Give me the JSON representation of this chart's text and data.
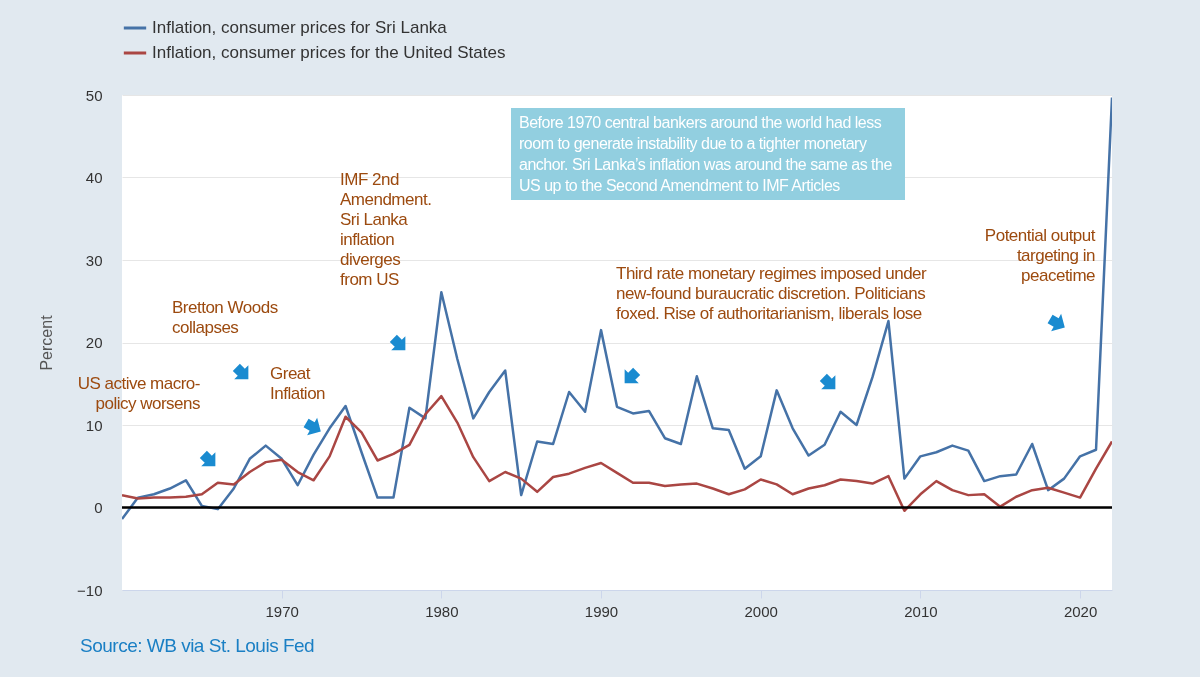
{
  "chart_data": {
    "type": "line",
    "ylabel": "Percent",
    "x": [
      1960,
      1961,
      1962,
      1963,
      1964,
      1965,
      1966,
      1967,
      1968,
      1969,
      1970,
      1971,
      1972,
      1973,
      1974,
      1975,
      1976,
      1977,
      1978,
      1979,
      1980,
      1981,
      1982,
      1983,
      1984,
      1985,
      1986,
      1987,
      1988,
      1989,
      1990,
      1991,
      1992,
      1993,
      1994,
      1995,
      1996,
      1997,
      1998,
      1999,
      2000,
      2001,
      2002,
      2003,
      2004,
      2005,
      2006,
      2007,
      2008,
      2009,
      2010,
      2011,
      2012,
      2013,
      2014,
      2015,
      2016,
      2017,
      2018,
      2019,
      2020,
      2021,
      2022
    ],
    "series": [
      {
        "name": "Inflation, consumer prices for Sri Lanka",
        "color": "#4572a7",
        "values": [
          -1.4,
          1.2,
          1.6,
          2.3,
          3.3,
          0.2,
          -0.2,
          2.3,
          5.9,
          7.5,
          5.9,
          2.7,
          6.4,
          9.6,
          12.3,
          6.7,
          1.2,
          1.2,
          12.1,
          10.8,
          26.1,
          18.0,
          10.8,
          14.0,
          16.6,
          1.5,
          8.0,
          7.7,
          14.0,
          11.6,
          21.5,
          12.2,
          11.4,
          11.7,
          8.4,
          7.7,
          15.9,
          9.6,
          9.4,
          4.7,
          6.2,
          14.2,
          9.6,
          6.3,
          7.6,
          11.6,
          10.0,
          15.8,
          22.6,
          3.5,
          6.2,
          6.7,
          7.5,
          6.9,
          3.2,
          3.8,
          4.0,
          7.7,
          2.1,
          3.5,
          6.2,
          7.0,
          49.7
        ]
      },
      {
        "name": "Inflation, consumer prices for the United States",
        "color": "#aa4643",
        "values": [
          1.5,
          1.1,
          1.2,
          1.2,
          1.3,
          1.6,
          3.0,
          2.8,
          4.3,
          5.5,
          5.8,
          4.3,
          3.3,
          6.2,
          11.0,
          9.1,
          5.7,
          6.5,
          7.6,
          11.3,
          13.5,
          10.3,
          6.1,
          3.2,
          4.3,
          3.5,
          1.9,
          3.7,
          4.1,
          4.8,
          5.4,
          4.2,
          3.0,
          3.0,
          2.6,
          2.8,
          2.9,
          2.3,
          1.6,
          2.2,
          3.4,
          2.8,
          1.6,
          2.3,
          2.7,
          3.4,
          3.2,
          2.9,
          3.8,
          -0.4,
          1.6,
          3.2,
          2.1,
          1.5,
          1.6,
          0.1,
          1.3,
          2.1,
          2.4,
          1.8,
          1.2,
          4.7,
          8.0
        ]
      }
    ],
    "xlim": [
      1960,
      2022
    ],
    "xticks": [
      1970,
      1980,
      1990,
      2000,
      2010,
      2020
    ],
    "ylim": [
      -10,
      50
    ],
    "yticks": [
      -10,
      0,
      10,
      20,
      30,
      40,
      50
    ],
    "grid": "y",
    "legend": "top left",
    "ref_lines": [
      {
        "axis": "y",
        "value": 0,
        "color": "#000000"
      }
    ],
    "annotations": [
      "Before 1970 central bankers around the world had less room to generate instability due to a tighter monetary anchor. Sri Lanka’s inflation was around the same as the US up to the Second Amendment to IMF Articles",
      "US active macro-policy worsens",
      "Bretton Woods collapses",
      "Great Inflation",
      "IMF 2nd Amendment. Sri Lanka inflation diverges from US",
      "Third rate monetary regimes imposed under new-found buraucratic discretion. Politicians foxed. Rise of authoritarianism, liberals lose",
      "Potential output targeting in peacetime",
      "Source: WB via St. Louis Fed"
    ]
  }
}
